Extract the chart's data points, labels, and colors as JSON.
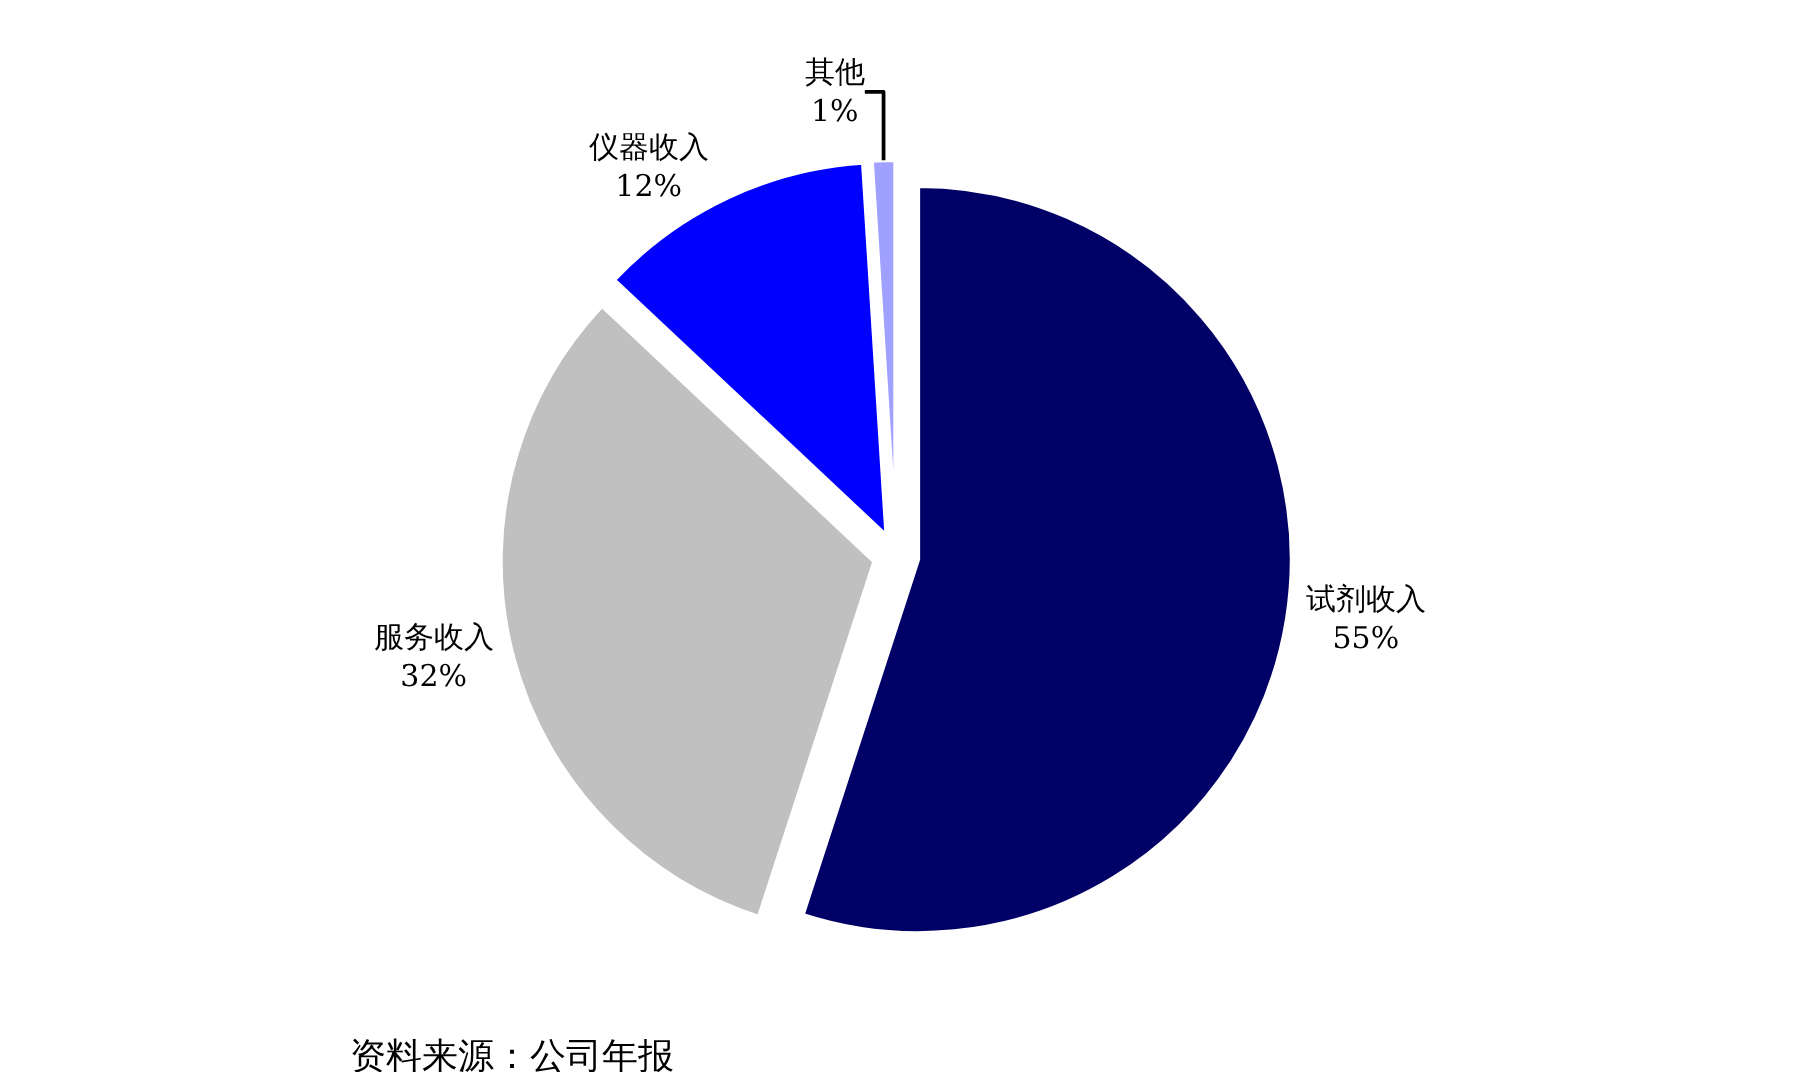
{
  "chart_data": {
    "type": "pie",
    "categories": [
      "试剂收入",
      "服务收入",
      "仪器收入",
      "其他"
    ],
    "values": [
      55,
      32,
      12,
      1
    ],
    "value_labels": [
      "55%",
      "32%",
      "12%",
      "1%"
    ],
    "colors": [
      "#000066",
      "#c0c0c0",
      "#0000ff",
      "#a0a0ff"
    ],
    "legend": false,
    "annotations": [
      "资料来源：公司年报"
    ]
  }
}
